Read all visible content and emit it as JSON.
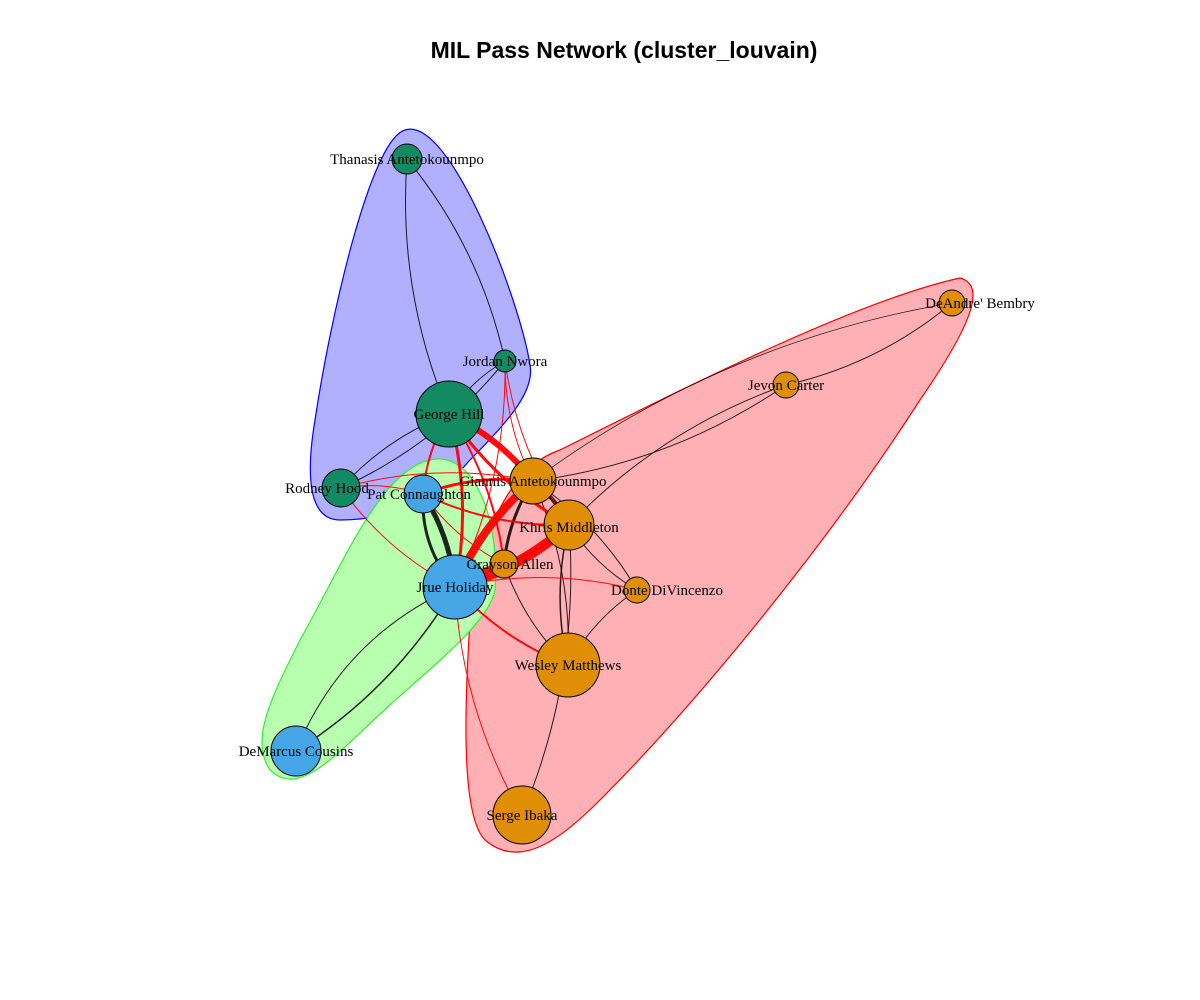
{
  "title": "MIL Pass Network (cluster_louvain)",
  "colors": {
    "blue_hull_fill": "#b0b0ff",
    "blue_hull_stroke": "#0000ff",
    "red_hull_fill": "#ffb0b4",
    "red_hull_stroke": "#ff0000",
    "green_hull_fill": "#b8ffb0",
    "green_hull_stroke": "#33ee33",
    "green_node": "#138a62",
    "blue_node": "#46a5e5",
    "orange_node": "#df8e05",
    "inter_edge": "#ff0000",
    "intra_edge": "#000000"
  },
  "nodes": [
    {
      "id": "thanasis",
      "label": "Thanasis Antetokounmpo",
      "group": "green"
    },
    {
      "id": "nwora",
      "label": "Jordan Nwora",
      "group": "green"
    },
    {
      "id": "hill",
      "label": "George Hill",
      "group": "green"
    },
    {
      "id": "hood",
      "label": "Rodney Hood",
      "group": "green"
    },
    {
      "id": "connaughton",
      "label": "Pat Connaughton",
      "group": "blue"
    },
    {
      "id": "holiday",
      "label": "Jrue Holiday",
      "group": "blue"
    },
    {
      "id": "cousins",
      "label": "DeMarcus Cousins",
      "group": "blue"
    },
    {
      "id": "giannis",
      "label": "Giannis Antetokounmpo",
      "group": "orange"
    },
    {
      "id": "middleton",
      "label": "Khris Middleton",
      "group": "orange"
    },
    {
      "id": "allen",
      "label": "Grayson Allen",
      "group": "orange"
    },
    {
      "id": "divincenzo",
      "label": "Donte DiVincenzo",
      "group": "orange"
    },
    {
      "id": "matthews",
      "label": "Wesley Matthews",
      "group": "orange"
    },
    {
      "id": "ibaka",
      "label": "Serge Ibaka",
      "group": "orange"
    },
    {
      "id": "carter",
      "label": "Jevon Carter",
      "group": "orange"
    },
    {
      "id": "bembry",
      "label": "DeAndre' Bembry",
      "group": "orange"
    }
  ],
  "edges": [
    {
      "s": "thanasis",
      "t": "hill",
      "w": 1
    },
    {
      "s": "thanasis",
      "t": "nwora",
      "w": 1
    },
    {
      "s": "nwora",
      "t": "hill",
      "w": 1
    },
    {
      "s": "nwora",
      "t": "hood",
      "w": 1
    },
    {
      "s": "hill",
      "t": "hood",
      "w": 1
    },
    {
      "s": "connaughton",
      "t": "holiday",
      "w": 5
    },
    {
      "s": "connaughton",
      "t": "holiday",
      "w": 3
    },
    {
      "s": "holiday",
      "t": "cousins",
      "w": 1.5
    },
    {
      "s": "holiday",
      "t": "cousins",
      "w": 1
    },
    {
      "s": "giannis",
      "t": "middleton",
      "w": 4
    },
    {
      "s": "giannis",
      "t": "allen",
      "w": 3
    },
    {
      "s": "middleton",
      "t": "allen",
      "w": 2
    },
    {
      "s": "middleton",
      "t": "divincenzo",
      "w": 1
    },
    {
      "s": "giannis",
      "t": "divincenzo",
      "w": 1
    },
    {
      "s": "middleton",
      "t": "matthews",
      "w": 1.5
    },
    {
      "s": "giannis",
      "t": "matthews",
      "w": 1
    },
    {
      "s": "allen",
      "t": "matthews",
      "w": 1
    },
    {
      "s": "middleton",
      "t": "ibaka",
      "w": 1
    },
    {
      "s": "giannis",
      "t": "carter",
      "w": 1
    },
    {
      "s": "middleton",
      "t": "carter",
      "w": 1
    },
    {
      "s": "carter",
      "t": "bembry",
      "w": 1
    },
    {
      "s": "giannis",
      "t": "bembry",
      "w": 0.8
    },
    {
      "s": "divincenzo",
      "t": "matthews",
      "w": 1
    },
    {
      "s": "holiday",
      "t": "giannis",
      "w": 8
    },
    {
      "s": "holiday",
      "t": "middleton",
      "w": 10
    },
    {
      "s": "holiday",
      "t": "allen",
      "w": 4
    },
    {
      "s": "holiday",
      "t": "hill",
      "w": 3
    },
    {
      "s": "hill",
      "t": "giannis",
      "w": 6
    },
    {
      "s": "hill",
      "t": "middleton",
      "w": 3
    },
    {
      "s": "connaughton",
      "t": "giannis",
      "w": 3
    },
    {
      "s": "connaughton",
      "t": "middleton",
      "w": 2
    },
    {
      "s": "connaughton",
      "t": "hill",
      "w": 2
    },
    {
      "s": "holiday",
      "t": "matthews",
      "w": 2
    },
    {
      "s": "holiday",
      "t": "divincenzo",
      "w": 1
    },
    {
      "s": "holiday",
      "t": "ibaka",
      "w": 1
    },
    {
      "s": "hood",
      "t": "connaughton",
      "w": 1
    },
    {
      "s": "hood",
      "t": "holiday",
      "w": 1
    },
    {
      "s": "hood",
      "t": "giannis",
      "w": 1
    },
    {
      "s": "nwora",
      "t": "giannis",
      "w": 1
    },
    {
      "s": "nwora",
      "t": "holiday",
      "w": 1
    },
    {
      "s": "nwora",
      "t": "middleton",
      "w": 1
    },
    {
      "s": "hill",
      "t": "allen",
      "w": 2
    },
    {
      "s": "connaughton",
      "t": "allen",
      "w": 1
    }
  ]
}
